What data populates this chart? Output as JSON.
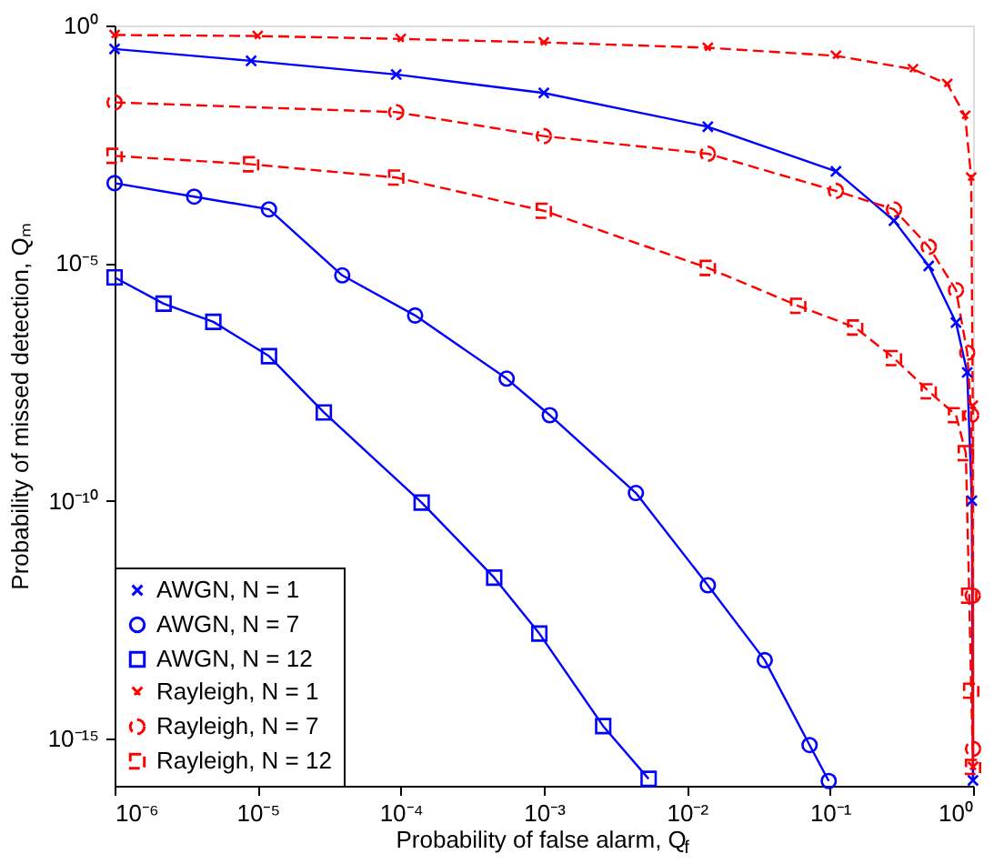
{
  "chart_data": {
    "type": "line",
    "xlabel": "Probability of false alarm, Q$_{f}$",
    "ylabel": "Probability of missed detection, Qₘ",
    "log": "xy",
    "grid": false,
    "legend": "bottom left",
    "xlim": [
      1e-06,
      1
    ],
    "ylim": [
      1e-16,
      1
    ],
    "xticks": [
      {
        "value": 1e-06,
        "label": "10⁻⁶"
      },
      {
        "value": 1e-05,
        "label": "10⁻⁵"
      },
      {
        "value": 0.0001,
        "label": "10⁻⁴"
      },
      {
        "value": 0.001,
        "label": "10⁻³"
      },
      {
        "value": 0.01,
        "label": "10⁻²"
      },
      {
        "value": 0.1,
        "label": "10⁻¹"
      },
      {
        "value": 1,
        "label": "10⁰"
      }
    ],
    "yticks": [
      {
        "value": 1e-15,
        "label": "10⁻¹⁵"
      },
      {
        "value": 1e-10,
        "label": "10⁻¹⁰"
      },
      {
        "value": 1e-05,
        "label": "10⁻⁵"
      },
      {
        "value": 1,
        "label": "10⁰"
      }
    ],
    "series": [
      {
        "name": "AWGN, N = 1",
        "color": "#0000ff",
        "marker": "cross",
        "line_style": "solid",
        "x": [
          1e-06,
          9e-06,
          9.3e-05,
          0.001,
          0.014,
          0.11,
          0.28,
          0.49,
          0.76,
          0.91,
          0.98,
          0.998
        ],
        "values": [
          0.32,
          0.18,
          0.093,
          0.038,
          0.0074,
          0.00085,
          7.8e-05,
          8.7e-06,
          5.6e-07,
          5e-08,
          1e-10,
          1.3e-16
        ]
      },
      {
        "name": "AWGN, N = 7",
        "color": "#0000ff",
        "marker": "circle",
        "line_style": "solid",
        "x": [
          1e-06,
          3.6e-06,
          1.2e-05,
          3.9e-05,
          0.000126,
          0.00055,
          0.0011,
          0.0044,
          0.014,
          0.035,
          0.072,
          0.098
        ],
        "values": [
          0.00048,
          0.00025,
          0.000135,
          5.5e-06,
          7.9e-07,
          3.7e-08,
          6.3e-09,
          1.45e-10,
          1.66e-12,
          4.4e-14,
          7.2e-16,
          1.26e-16
        ]
      },
      {
        "name": "AWGN, N = 12",
        "color": "#0000ff",
        "marker": "square",
        "line_style": "solid",
        "x": [
          1e-06,
          2.2e-06,
          4.9e-06,
          1.2e-05,
          2.9e-05,
          0.00014,
          0.00045,
          0.00093,
          0.0026,
          0.0054
        ],
        "values": [
          5e-06,
          1.4e-06,
          5.8e-07,
          1.1e-07,
          7.2e-09,
          9.1e-11,
          2.4e-12,
          1.6e-13,
          1.8e-15,
          1.4e-16
        ]
      },
      {
        "name": "Rayleigh, N = 1",
        "color": "#ff0000",
        "marker": "cross",
        "line_style": "dashed",
        "x": [
          1e-06,
          1e-05,
          0.0001,
          0.001,
          0.014,
          0.11,
          0.38,
          0.66,
          0.88,
          0.97,
          0.995,
          0.9995
        ],
        "values": [
          0.63,
          0.6,
          0.52,
          0.44,
          0.34,
          0.23,
          0.12,
          0.059,
          0.0126,
          0.00063,
          1e-08,
          2.5e-16
        ]
      },
      {
        "name": "Rayleigh, N = 7",
        "color": "#ff0000",
        "marker": "circle",
        "line_style": "dashed",
        "x": [
          1e-06,
          9.3e-05,
          0.001,
          0.014,
          0.11,
          0.28,
          0.49,
          0.76,
          0.91,
          0.97,
          0.995,
          0.9993
        ],
        "values": [
          0.024,
          0.015,
          0.0047,
          0.002,
          0.00033,
          0.000135,
          2.2e-05,
          2.7e-06,
          1.3e-07,
          6.3e-09,
          1e-12,
          6e-16
        ]
      },
      {
        "name": "Rayleigh, N = 12",
        "color": "#ff0000",
        "marker": "square",
        "line_style": "dashed",
        "x": [
          1e-06,
          9e-06,
          9.3e-05,
          0.001,
          0.014,
          0.06,
          0.15,
          0.28,
          0.49,
          0.76,
          0.89,
          0.94,
          0.97,
          0.9995
        ],
        "values": [
          0.0018,
          0.0012,
          0.00063,
          0.000126,
          7.9e-06,
          1.26e-06,
          4.4e-07,
          1e-07,
          2e-08,
          6.3e-09,
          1e-09,
          1e-12,
          1e-14,
          2.5e-16
        ]
      }
    ]
  }
}
